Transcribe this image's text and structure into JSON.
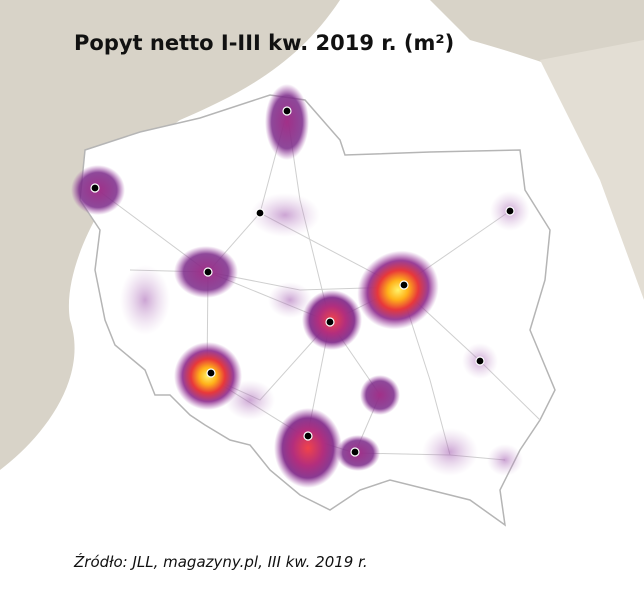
{
  "header": {
    "title": "Popyt netto I-III kw. 2019 r. (m²)"
  },
  "footer": {
    "source": "Źródło: JLL, magazyny.pl, III kw. 2019 r."
  }
}
